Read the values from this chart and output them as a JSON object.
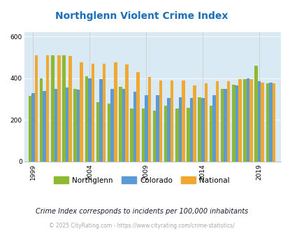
{
  "title": "Northglenn Violent Crime Index",
  "subtitle": "Crime Index corresponds to incidents per 100,000 inhabitants",
  "footer": "© 2025 CityRating.com - https://www.cityrating.com/crime-statistics/",
  "years": [
    1999,
    2000,
    2001,
    2002,
    2003,
    2004,
    2005,
    2006,
    2007,
    2008,
    2009,
    2010,
    2011,
    2012,
    2013,
    2014,
    2015,
    2016,
    2017,
    2018,
    2019,
    2020
  ],
  "northglenn": [
    315,
    400,
    510,
    510,
    350,
    410,
    285,
    280,
    360,
    255,
    255,
    245,
    270,
    255,
    260,
    310,
    270,
    350,
    370,
    395,
    460,
    375
  ],
  "colorado": [
    330,
    340,
    350,
    355,
    345,
    400,
    395,
    350,
    350,
    335,
    320,
    320,
    305,
    310,
    305,
    305,
    320,
    350,
    365,
    400,
    385,
    380
  ],
  "national": [
    510,
    510,
    510,
    505,
    475,
    470,
    470,
    475,
    465,
    430,
    405,
    390,
    390,
    390,
    365,
    375,
    385,
    385,
    395,
    395,
    380,
    375
  ],
  "color_northglenn": "#8cb832",
  "color_colorado": "#5b9bd5",
  "color_national": "#f0a830",
  "title_color": "#1a6fba",
  "subtitle_color": "#1a1a2e",
  "footer_color": "#aaaaaa",
  "bg_color": "#daeaf4",
  "fig_bg": "#ffffff",
  "ylim": [
    0,
    620
  ],
  "yticks": [
    0,
    200,
    400,
    600
  ],
  "xlabel_years": [
    1999,
    2004,
    2009,
    2014,
    2019
  ]
}
